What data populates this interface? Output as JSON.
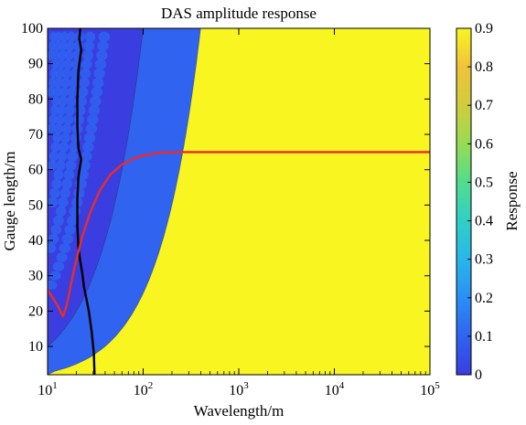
{
  "chart_data": {
    "type": "heatmap",
    "title": "DAS amplitude response",
    "xlabel": "Wavelength/m",
    "ylabel": "Gauge length/m",
    "colorbar_label": "Response",
    "x_scale": "log",
    "xlim": [
      10,
      100000
    ],
    "ylim": [
      2,
      100
    ],
    "x_ticks": [
      {
        "value": 10,
        "base": "10",
        "exp": "1"
      },
      {
        "value": 100,
        "base": "10",
        "exp": "2"
      },
      {
        "value": 1000,
        "base": "10",
        "exp": "3"
      },
      {
        "value": 10000,
        "base": "10",
        "exp": "4"
      },
      {
        "value": 100000,
        "base": "10",
        "exp": "5"
      }
    ],
    "y_ticks": [
      "10",
      "20",
      "30",
      "40",
      "50",
      "60",
      "70",
      "80",
      "90",
      "100"
    ],
    "colorbar_ticks": [
      "0",
      "0.1",
      "0.2",
      "0.3",
      "0.4",
      "0.5",
      "0.6",
      "0.7",
      "0.8",
      "0.9"
    ],
    "colorbar_range": [
      0,
      0.9
    ],
    "colormap": [
      "#3a3ee0",
      "#2f63f0",
      "#2a8ff5",
      "#29b6ea",
      "#2fd0c5",
      "#52dc8c",
      "#96dc54",
      "#d0cd3c",
      "#f0c23a",
      "#f8f520"
    ],
    "response_model": "1 - |sinc(gauge_length / wavelength)|",
    "contour_levels": [
      0.1,
      0.2,
      0.3,
      0.4,
      0.5,
      0.6,
      0.7,
      0.8
    ],
    "lines": [
      {
        "color": "#000000",
        "points": [
          [
            31,
            2
          ],
          [
            30.5,
            8
          ],
          [
            29,
            14
          ],
          [
            27,
            20
          ],
          [
            24,
            27
          ],
          [
            23,
            31
          ],
          [
            22,
            34
          ],
          [
            21,
            38
          ],
          [
            20.5,
            44
          ],
          [
            20.5,
            52
          ],
          [
            21,
            58
          ],
          [
            22.5,
            63
          ],
          [
            21,
            66
          ],
          [
            20.5,
            72
          ],
          [
            20.5,
            80
          ],
          [
            21,
            88
          ],
          [
            22.5,
            94
          ],
          [
            21.5,
            97
          ],
          [
            22,
            100
          ]
        ]
      },
      {
        "color": "#ee2a2a",
        "points": [
          [
            10,
            26
          ],
          [
            12.5,
            22
          ],
          [
            14.5,
            18.5
          ],
          [
            16,
            22
          ],
          [
            19,
            32
          ],
          [
            23,
            41
          ],
          [
            28,
            48
          ],
          [
            35,
            54
          ],
          [
            45,
            58.5
          ],
          [
            60,
            61.5
          ],
          [
            80,
            63.2
          ],
          [
            100,
            64
          ],
          [
            150,
            64.8
          ],
          [
            250,
            65
          ],
          [
            1000,
            65
          ],
          [
            100000,
            65
          ]
        ]
      }
    ]
  }
}
